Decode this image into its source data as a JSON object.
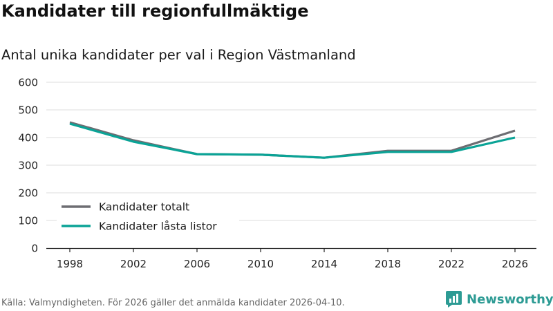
{
  "header": {
    "title": "Kandidater till regionfullmäktige",
    "subtitle": "Antal unika kandidater per val i Region Västmanland"
  },
  "chart_data": {
    "type": "line",
    "title": "Kandidater till regionfullmäktige",
    "subtitle": "Antal unika kandidater per val i Region Västmanland",
    "xlabel": "",
    "ylabel": "",
    "categories": [
      "1998",
      "2002",
      "2006",
      "2010",
      "2014",
      "2018",
      "2022",
      "2026"
    ],
    "ylim": [
      0,
      600
    ],
    "yticks": [
      0,
      100,
      200,
      300,
      400,
      500,
      600
    ],
    "grid": true,
    "legend_position": "bottom-left",
    "series": [
      {
        "name": "Kandidater totalt",
        "color": "#6d6d72",
        "values": [
          455,
          390,
          340,
          338,
          327,
          352,
          352,
          425
        ]
      },
      {
        "name": "Kandidater låsta listor",
        "color": "#0aa396",
        "values": [
          450,
          385,
          340,
          338,
          327,
          348,
          348,
          400
        ]
      }
    ]
  },
  "footer": {
    "source": "Källa: Valmyndigheten. För 2026 gäller det anmälda kandidater 2026-04-10."
  },
  "brand": {
    "name": "Newsworthy",
    "color": "#2d9b94"
  }
}
